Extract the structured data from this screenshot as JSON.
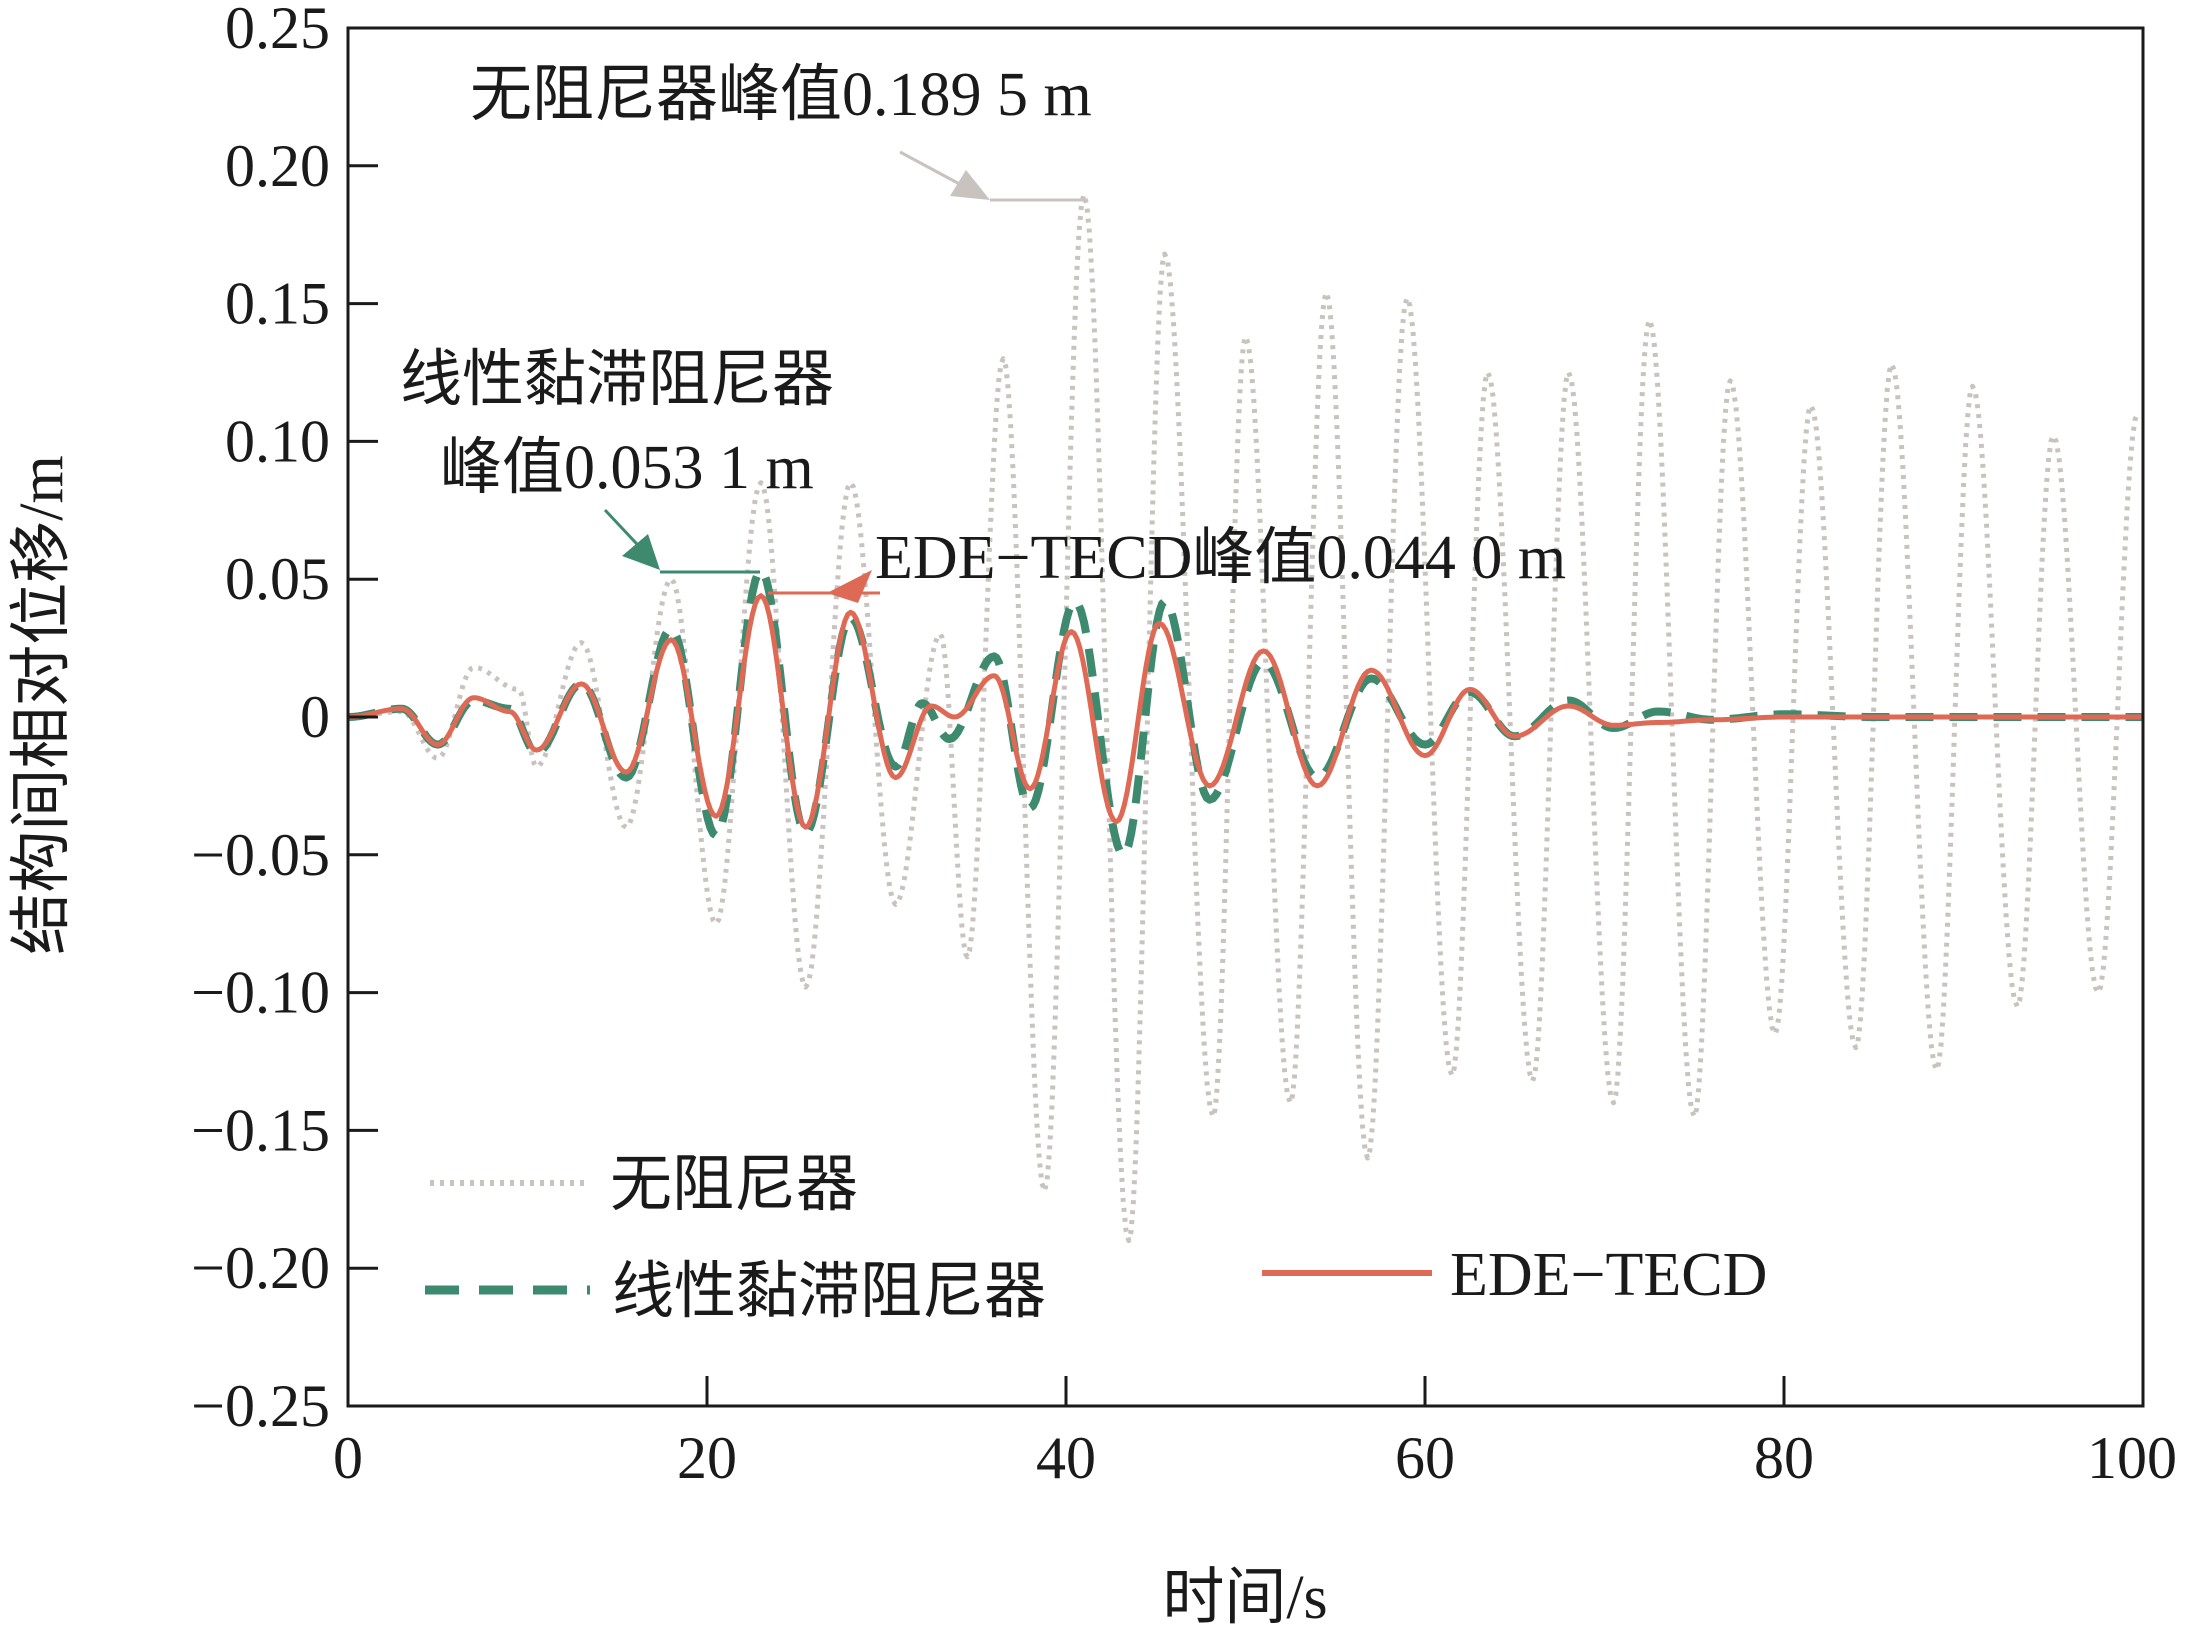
{
  "chart_data": {
    "type": "line",
    "title": "",
    "xlabel": "时间/s",
    "ylabel": "结构间相对位移/m",
    "xlim": [
      0,
      100
    ],
    "ylim": [
      -0.25,
      0.25
    ],
    "xticks": [
      0,
      20,
      40,
      60,
      80,
      100
    ],
    "xtick_labels": [
      "0",
      "20",
      "40",
      "60",
      "80",
      "100"
    ],
    "yticks": [
      0.25,
      0.2,
      0.15,
      0.1,
      0.05,
      0,
      -0.05,
      -0.1,
      -0.15,
      -0.2,
      -0.25
    ],
    "ytick_labels": [
      "0.25",
      "0.20",
      "0.15",
      "0.10",
      "0.05",
      "0",
      "−0.05",
      "−0.10",
      "−0.15",
      "−0.20",
      "−0.25"
    ],
    "grid": false,
    "legend_position": "bottom-left",
    "series": [
      {
        "name": "无阻尼器",
        "style": "dotted",
        "color": "#c9c3c0",
        "points": [
          [
            0,
            0
          ],
          [
            3,
            0.002
          ],
          [
            5,
            -0.015
          ],
          [
            7,
            0.018
          ],
          [
            9.5,
            0.01
          ],
          [
            10.5,
            -0.018
          ],
          [
            13,
            0.027
          ],
          [
            15.5,
            -0.04
          ],
          [
            18,
            0.05
          ],
          [
            20.5,
            -0.075
          ],
          [
            23,
            0.085
          ],
          [
            25.5,
            -0.098
          ],
          [
            28,
            0.085
          ],
          [
            30.5,
            -0.068
          ],
          [
            33,
            0.03
          ],
          [
            34.5,
            -0.087
          ],
          [
            36.5,
            0.13
          ],
          [
            38.8,
            -0.172
          ],
          [
            41,
            0.1895
          ],
          [
            43.5,
            -0.19
          ],
          [
            45.5,
            0.168
          ],
          [
            48.2,
            -0.145
          ],
          [
            50,
            0.138
          ],
          [
            52.5,
            -0.14
          ],
          [
            54.5,
            0.154
          ],
          [
            56.8,
            -0.16
          ],
          [
            59,
            0.152
          ],
          [
            61.5,
            -0.13
          ],
          [
            63.5,
            0.125
          ],
          [
            66,
            -0.132
          ],
          [
            68,
            0.125
          ],
          [
            70.5,
            -0.14
          ],
          [
            72.5,
            0.144
          ],
          [
            75,
            -0.145
          ],
          [
            77,
            0.122
          ],
          [
            79.5,
            -0.115
          ],
          [
            81.5,
            0.113
          ],
          [
            84,
            -0.12
          ],
          [
            86,
            0.128
          ],
          [
            88.5,
            -0.128
          ],
          [
            90.5,
            0.12
          ],
          [
            93,
            -0.105
          ],
          [
            95,
            0.102
          ],
          [
            97.5,
            -0.1
          ],
          [
            99.7,
            0.11
          ]
        ]
      },
      {
        "name": "线性黏滞阻尼器",
        "style": "dashed",
        "color": "#3e8a6f",
        "points": [
          [
            0,
            0
          ],
          [
            3,
            0.003
          ],
          [
            5,
            -0.01
          ],
          [
            7,
            0.006
          ],
          [
            9,
            0.003
          ],
          [
            10.5,
            -0.013
          ],
          [
            13,
            0.012
          ],
          [
            15.5,
            -0.022
          ],
          [
            18,
            0.032
          ],
          [
            20.5,
            -0.043
          ],
          [
            23,
            0.0531
          ],
          [
            25.5,
            -0.042
          ],
          [
            28,
            0.036
          ],
          [
            30.5,
            -0.018
          ],
          [
            32,
            0.005
          ],
          [
            33.5,
            -0.008
          ],
          [
            36,
            0.022
          ],
          [
            38,
            -0.033
          ],
          [
            40.5,
            0.042
          ],
          [
            43.2,
            -0.05
          ],
          [
            45.5,
            0.042
          ],
          [
            48,
            -0.03
          ],
          [
            51,
            0.02
          ],
          [
            54,
            -0.022
          ],
          [
            57,
            0.014
          ],
          [
            60,
            -0.01
          ],
          [
            62.5,
            0.009
          ],
          [
            65,
            -0.007
          ],
          [
            68,
            0.006
          ],
          [
            70.5,
            -0.004
          ],
          [
            73,
            0.002
          ],
          [
            76,
            -0.001
          ],
          [
            80,
            0.001
          ],
          [
            85,
            0
          ],
          [
            100,
            0
          ]
        ]
      },
      {
        "name": "EDE-TECD",
        "style": "solid",
        "color": "#de6a55",
        "points": [
          [
            0,
            0
          ],
          [
            3,
            0.003
          ],
          [
            5,
            -0.01
          ],
          [
            7,
            0.007
          ],
          [
            9,
            0.002
          ],
          [
            10.5,
            -0.012
          ],
          [
            13,
            0.012
          ],
          [
            15.5,
            -0.02
          ],
          [
            18,
            0.028
          ],
          [
            20.5,
            -0.036
          ],
          [
            23,
            0.044
          ],
          [
            25.5,
            -0.04
          ],
          [
            28,
            0.038
          ],
          [
            30.5,
            -0.022
          ],
          [
            32.5,
            0.004
          ],
          [
            33.8,
            0
          ],
          [
            36,
            0.015
          ],
          [
            38,
            -0.026
          ],
          [
            40.3,
            0.031
          ],
          [
            42.8,
            -0.038
          ],
          [
            45.2,
            0.034
          ],
          [
            48,
            -0.025
          ],
          [
            51,
            0.024
          ],
          [
            54,
            -0.025
          ],
          [
            57,
            0.017
          ],
          [
            60,
            -0.014
          ],
          [
            62.5,
            0.01
          ],
          [
            65,
            -0.007
          ],
          [
            68,
            0.004
          ],
          [
            70.5,
            -0.003
          ],
          [
            73,
            -0.002
          ],
          [
            76,
            -0.001
          ],
          [
            80,
            0
          ],
          [
            100,
            0
          ]
        ]
      }
    ],
    "annotations": {
      "undamped_peak": "无阻尼器峰值0.189 5 m",
      "viscous_peak_line1": "线性黏滞阻尼器",
      "viscous_peak_line2": "峰值0.053 1 m",
      "ede_peak": "EDE−TECD峰值0.044 0 m"
    },
    "legend": {
      "undamped": "无阻尼器",
      "viscous": "线性黏滞阻尼器",
      "ede": "EDE−TECD"
    }
  }
}
